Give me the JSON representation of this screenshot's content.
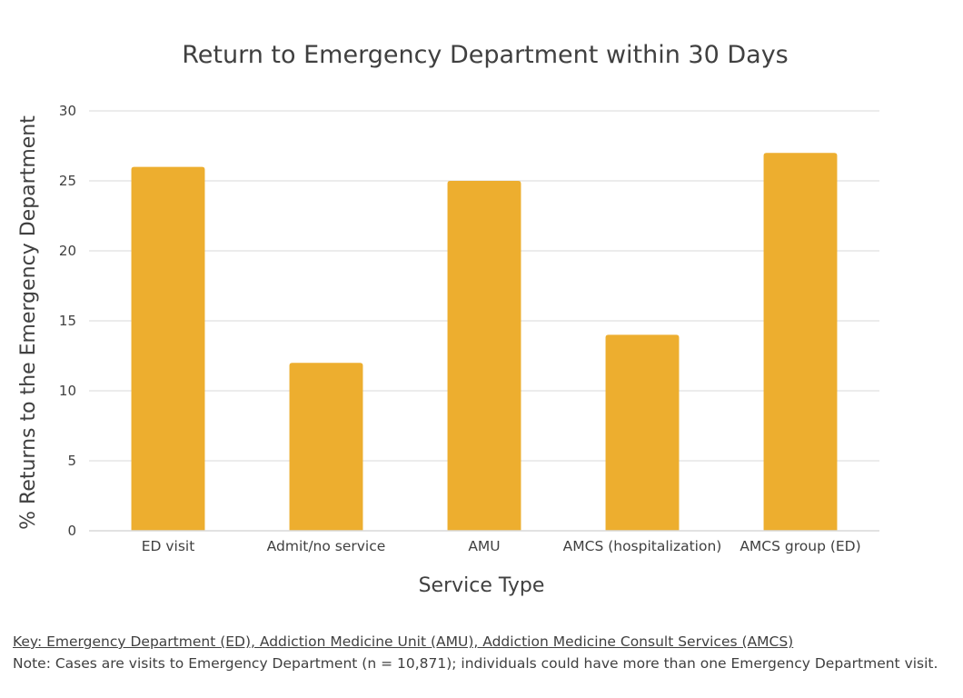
{
  "chart_data": {
    "type": "bar",
    "title": "Return to Emergency Department within 30 Days",
    "xlabel": "Service Type",
    "ylabel": "% Returns to the Emergency Department",
    "categories": [
      "ED visit",
      "Admit/no service",
      "AMU",
      "AMCS (hospitalization)",
      "AMCS group (ED)"
    ],
    "values": [
      26,
      12,
      25,
      14,
      27
    ],
    "ylim": [
      0,
      30
    ],
    "yticks": [
      "0",
      "5",
      "10",
      "15",
      "20",
      "25",
      "30"
    ],
    "grid": true,
    "bar_color": "#EDAE2F",
    "grid_color": "#D9D9D9"
  },
  "notes": {
    "key": "Key: Emergency Department (ED), Addiction Medicine Unit (AMU), Addiction Medicine Consult Services (AMCS)",
    "note": "Note: Cases are visits to Emergency Department (n = 10,871); individuals could have more than one Emergency Department visit."
  }
}
